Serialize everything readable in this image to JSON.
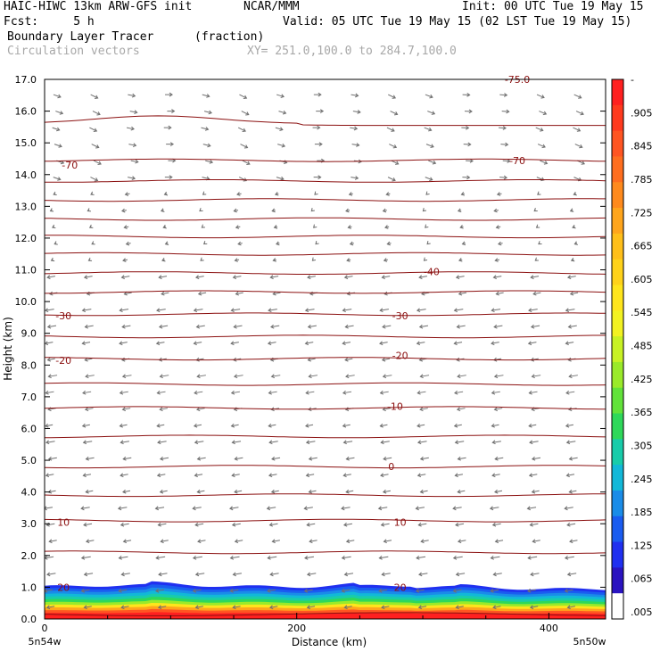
{
  "header": {
    "model": "HAIC-HIWC 13km ARW-GFS init",
    "org": "NCAR/MMM",
    "init": "Init: 00 UTC Tue 19 May 15",
    "fcst": "Fcst:     5 h",
    "valid": "Valid: 05 UTC Tue 19 May 15 (02 LST Tue 19 May 15)",
    "field": "Boundary Layer Tracer",
    "units": "(fraction)",
    "vectors": "Circulation vectors",
    "section": "XY= 251.0,100.0 to 284.7,100.0"
  },
  "chart_data": {
    "type": "contour-section",
    "ylabel": "Height (km)",
    "xlabel": "Distance (km)",
    "ylim": [
      0,
      17
    ],
    "xlim": [
      0,
      445
    ],
    "y_ticks": [
      "0.0",
      "1.0",
      "2.0",
      "3.0",
      "4.0",
      "5.0",
      "6.0",
      "7.0",
      "8.0",
      "9.0",
      "10.0",
      "11.0",
      "12.0",
      "13.0",
      "14.0",
      "15.0",
      "16.0",
      "17.0"
    ],
    "x_ticks": [
      {
        "value": 0,
        "label": "0"
      },
      {
        "value": 200,
        "label": "200"
      },
      {
        "value": 400,
        "label": "400"
      }
    ],
    "x_end_labels": {
      "left": "5n54w",
      "right": "5n50w"
    },
    "temperature_contour_labels": [
      {
        "text": "-70",
        "x": 20,
        "y": 14.3
      },
      {
        "text": "-70",
        "x": 375,
        "y": 14.45
      },
      {
        "text": "-40",
        "x": 307,
        "y": 10.95
      },
      {
        "text": "-30",
        "x": 15,
        "y": 9.55
      },
      {
        "text": "-30",
        "x": 282,
        "y": 9.55
      },
      {
        "text": "-20",
        "x": 15,
        "y": 8.15
      },
      {
        "text": "-20",
        "x": 282,
        "y": 8.3
      },
      {
        "text": "-10",
        "x": 278,
        "y": 6.7
      },
      {
        "text": "0",
        "x": 275,
        "y": 4.8
      },
      {
        "text": "10",
        "x": 15,
        "y": 3.05
      },
      {
        "text": "10",
        "x": 282,
        "y": 3.05
      },
      {
        "text": "20",
        "x": 15,
        "y": 1.0
      },
      {
        "text": "20",
        "x": 282,
        "y": 1.0
      },
      {
        "text": "-75.0",
        "x": 375,
        "y": 17.0
      }
    ],
    "colorbar_labels": [
      "-",
      ".905",
      ".845",
      ".785",
      ".725",
      ".665",
      ".605",
      ".545",
      ".485",
      ".425",
      ".365",
      ".305",
      ".245",
      ".185",
      ".125",
      ".065",
      ".005"
    ],
    "colorbar_colors": [
      "#ff2020",
      "#ff3a1e",
      "#ff5522",
      "#ff6e1f",
      "#ff8a1d",
      "#ffa51c",
      "#ffbf1a",
      "#ffd21a",
      "#ffe51c",
      "#f2f222",
      "#c8f224",
      "#9aea2a",
      "#62e23a",
      "#2ed85a",
      "#18ccaa",
      "#12b8d8",
      "#1a8ce8",
      "#1a5cf0",
      "#2030f0",
      "#2a14c0",
      "#ffffff"
    ],
    "contour_color": "#8b1010",
    "vector_color": "#707070"
  }
}
